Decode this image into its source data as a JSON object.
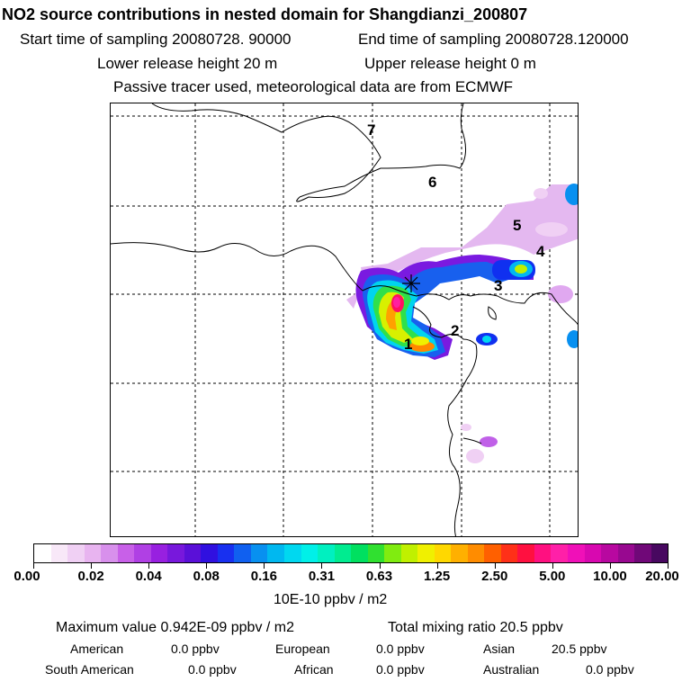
{
  "header": {
    "title": "NO2 source contributions in nested domain for Shangdianzi_200807",
    "start_time": "Start time of sampling 20080728. 90000",
    "end_time": "End time of sampling 20080728.120000",
    "lower_release": "Lower release height   20 m",
    "upper_release": "Upper release height    0 m",
    "tracer_note": "Passive tracer used, meteorological data are from ECMWF"
  },
  "map": {
    "region_labels": [
      "1",
      "2",
      "3",
      "4",
      "5",
      "6",
      "7"
    ],
    "station_marker": "receptor-star-icon",
    "graticule": "dashed",
    "plume_levels_ppbv_per_m2_e10": [
      0.63,
      1.25,
      2.5,
      5.0
    ]
  },
  "legend": {
    "ticks": [
      "0.00",
      "0.02",
      "0.04",
      "0.08",
      "0.16",
      "0.31",
      "0.63",
      "1.25",
      "2.50",
      "5.00",
      "10.00",
      "20.00"
    ],
    "unit": "10E-10 ppbv / m2",
    "colors": [
      "#ffffff",
      "#f8e8f8",
      "#f0d0f4",
      "#e8b4f0",
      "#d890ec",
      "#c860e8",
      "#b040e4",
      "#9820e0",
      "#7818dc",
      "#5a10d8",
      "#3010e0",
      "#1830f0",
      "#1060f0",
      "#0890f0",
      "#00b8f0",
      "#00d8f0",
      "#00f0e8",
      "#00f0c0",
      "#00ec90",
      "#00e060",
      "#30e030",
      "#80ec10",
      "#c0f000",
      "#f0f000",
      "#ffd800",
      "#ffb000",
      "#ff8c00",
      "#ff6000",
      "#ff3018",
      "#ff1040",
      "#ff1080",
      "#ff20a8",
      "#f010b8",
      "#d808b0",
      "#b808a0",
      "#980890",
      "#700878",
      "#480860"
    ]
  },
  "footer": {
    "max_value": "Maximum value  0.942E-09 ppbv / m2",
    "total_mixing": "Total mixing ratio       20.5 ppbv",
    "american": "American",
    "american_value": "0.0 ppbv",
    "european": "European",
    "european_value": "0.0 ppbv",
    "asian": "Asian",
    "asian_value": "20.5 ppbv",
    "south_american": "South American",
    "south_american_value": "0.0 ppbv",
    "african": "African",
    "african_value": "0.0 ppbv",
    "australian": "Australian",
    "australian_value": "0.0 ppbv"
  }
}
